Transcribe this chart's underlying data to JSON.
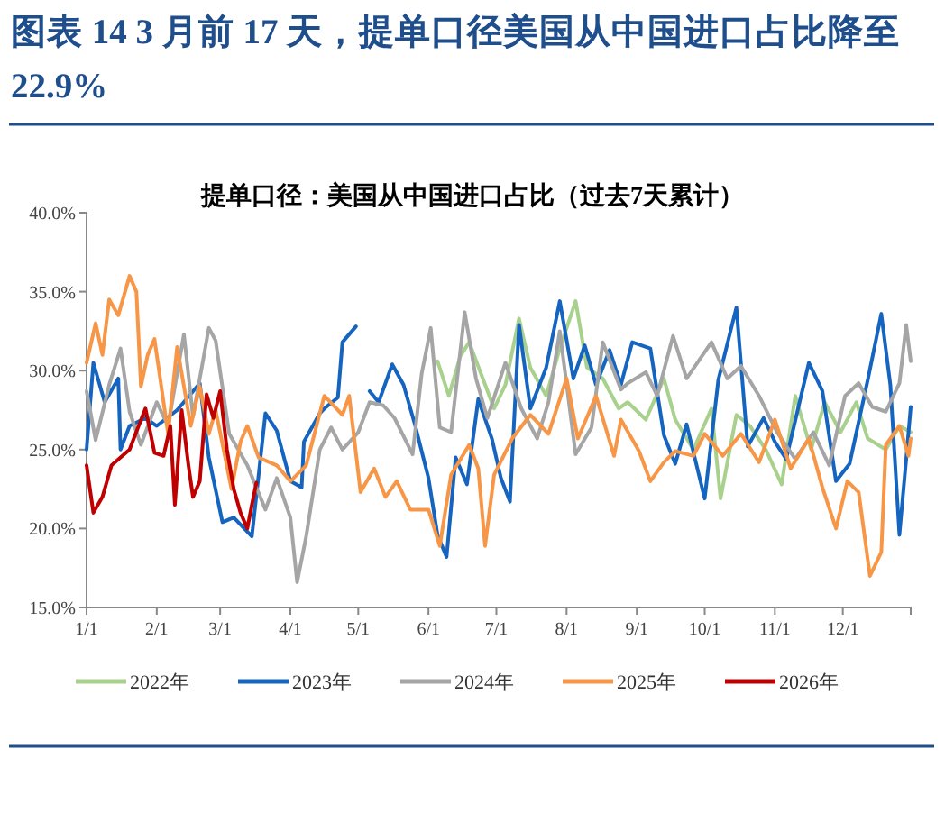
{
  "chart_data": {
    "type": "line",
    "title": "图表 14   3 月前 17 天，提单口径美国从中国进口占比降至 22.9%",
    "subtitle": "提单口径：美国从中国进口占比（过去7天累计）",
    "xlim": [
      "--01-01",
      "--12-31"
    ],
    "xticks": [
      {
        "value": "--01-01",
        "label": "1/1"
      },
      {
        "value": "--02-01",
        "label": "2/1"
      },
      {
        "value": "--03-01",
        "label": "3/1"
      },
      {
        "value": "--04-01",
        "label": "4/1"
      },
      {
        "value": "--05-01",
        "label": "5/1"
      },
      {
        "value": "--06-01",
        "label": "6/1"
      },
      {
        "value": "--07-01",
        "label": "7/1"
      },
      {
        "value": "--08-01",
        "label": "8/1"
      },
      {
        "value": "--09-01",
        "label": "9/1"
      },
      {
        "value": "--10-01",
        "label": "10/1"
      },
      {
        "value": "--11-01",
        "label": "11/1"
      },
      {
        "value": "--12-01",
        "label": "12/1"
      }
    ],
    "ylim": [
      15,
      40
    ],
    "yticks": [
      {
        "value": 15,
        "label": "15.0%"
      },
      {
        "value": 20,
        "label": "20.0%"
      },
      {
        "value": 25,
        "label": "25.0%"
      },
      {
        "value": 30,
        "label": "30.0%"
      },
      {
        "value": 35,
        "label": "35.0%"
      },
      {
        "value": 40,
        "label": "40.0%"
      }
    ],
    "grid": false,
    "legend": "bottom",
    "marker": "none",
    "line_style": "solid",
    "series": [
      {
        "name": "2022年",
        "color": "#a9d18e",
        "x": [
          "--06-05",
          "--06-10",
          "--06-15",
          "--06-19",
          "--06-25",
          "--06-30",
          "--07-05",
          "--07-11",
          "--07-16",
          "--07-23",
          "--07-29",
          "--08-05",
          "--08-10",
          "--08-17",
          "--08-24",
          "--08-28",
          "--09-05",
          "--09-13",
          "--09-18",
          "--09-26",
          "--10-04",
          "--10-08",
          "--10-15",
          "--10-21",
          "--10-28",
          "--11-04",
          "--11-10",
          "--11-17",
          "--11-23",
          "--11-30",
          "--12-07",
          "--12-12",
          "--12-20",
          "--12-26",
          "--12-31"
        ],
        "values": [
          30.6,
          28.4,
          30.9,
          31.8,
          29.5,
          27.6,
          29.1,
          33.3,
          30.2,
          28.4,
          31.4,
          34.4,
          30.2,
          29.5,
          27.6,
          28.0,
          26.9,
          29.5,
          26.9,
          25.0,
          27.6,
          21.9,
          27.2,
          26.5,
          25.0,
          22.8,
          28.4,
          25.0,
          28.0,
          26.1,
          28.0,
          25.7,
          25.0,
          26.5,
          26.1
        ]
      },
      {
        "name": "2023年",
        "color": "#1565c0",
        "x": [
          "--01-01",
          "--01-04",
          "--01-09",
          "--01-15",
          "--01-16",
          "--01-20",
          "--01-27",
          "--02-01",
          "--02-10",
          "--02-20",
          "--02-24",
          "--03-02",
          "--03-07",
          "--03-15",
          "--03-21",
          "--03-26",
          "--04-01",
          "--04-06",
          "--04-07",
          "--04-14",
          "--04-16",
          "--04-22",
          "--04-24",
          "--04-30",
          "--05-02",
          "--05-06",
          "--05-10",
          "--05-16",
          "--05-21",
          "--05-26",
          "--06-01",
          "--06-05",
          "--06-09",
          "--06-13",
          "--06-18",
          "--06-23",
          "--06-29",
          "--07-03",
          "--07-07",
          "--07-11",
          "--07-16",
          "--07-23",
          "--07-29",
          "--08-04",
          "--08-09",
          "--08-14",
          "--08-20",
          "--08-25",
          "--08-30",
          "--09-07",
          "--09-13",
          "--09-18",
          "--09-23",
          "--10-01",
          "--10-07",
          "--10-15",
          "--10-20",
          "--10-27",
          "--11-01",
          "--11-06",
          "--11-16",
          "--11-22",
          "--11-28",
          "--12-04",
          "--12-12",
          "--12-18",
          "--12-22",
          "--12-26",
          "--12-29",
          "--12-31"
        ],
        "values": [
          25.0,
          30.5,
          28.0,
          29.5,
          25.0,
          26.5,
          27.0,
          26.5,
          27.5,
          29.2,
          24.5,
          20.4,
          20.7,
          19.5,
          27.3,
          26.2,
          23.0,
          22.6,
          25.5,
          27.3,
          27.6,
          28.3,
          31.8,
          32.8,
          null,
          28.7,
          28.0,
          30.4,
          29.1,
          26.6,
          23.2,
          19.6,
          18.2,
          24.5,
          22.8,
          28.2,
          25.7,
          23.2,
          21.7,
          32.9,
          27.6,
          30.2,
          34.4,
          29.5,
          31.6,
          29.1,
          31.3,
          29.1,
          31.8,
          31.4,
          25.9,
          24.1,
          26.6,
          21.9,
          29.4,
          34.0,
          25.2,
          27.0,
          25.5,
          24.4,
          30.5,
          28.7,
          23.0,
          24.1,
          29.4,
          33.6,
          29.1,
          19.6,
          24.4,
          27.7
        ]
      },
      {
        "name": "2024年",
        "color": "#a5a5a5",
        "x": [
          "--01-01",
          "--01-05",
          "--01-11",
          "--01-16",
          "--01-20",
          "--01-25",
          "--02-01",
          "--02-06",
          "--02-13",
          "--02-17",
          "--02-24",
          "--02-27",
          "--03-05",
          "--03-13",
          "--03-21",
          "--03-26",
          "--04-01",
          "--04-04",
          "--04-08",
          "--04-14",
          "--04-19",
          "--04-24",
          "--05-01",
          "--05-06",
          "--05-12",
          "--05-17",
          "--05-25",
          "--05-29",
          "--06-02",
          "--06-06",
          "--06-11",
          "--06-17",
          "--06-22",
          "--06-27",
          "--07-05",
          "--07-12",
          "--07-19",
          "--07-24",
          "--07-29",
          "--08-05",
          "--08-12",
          "--08-17",
          "--08-25",
          "--08-28",
          "--09-05",
          "--09-10",
          "--09-17",
          "--09-23",
          "--10-04",
          "--10-11",
          "--10-17",
          "--10-25",
          "--11-02",
          "--11-10",
          "--11-18",
          "--11-25",
          "--12-02",
          "--12-08",
          "--12-14",
          "--12-20",
          "--12-26",
          "--12-29",
          "--12-31"
        ],
        "values": [
          28.7,
          25.6,
          29.1,
          31.4,
          27.4,
          25.3,
          28.0,
          26.5,
          32.3,
          27.1,
          32.7,
          31.9,
          26.0,
          24.0,
          21.2,
          23.2,
          20.7,
          16.6,
          19.5,
          25.0,
          26.4,
          25.0,
          26.1,
          28.0,
          27.8,
          27.0,
          24.7,
          29.8,
          32.7,
          26.4,
          26.1,
          33.7,
          29.5,
          27.0,
          30.5,
          27.6,
          25.7,
          28.0,
          32.5,
          24.7,
          26.4,
          31.8,
          28.8,
          29.2,
          29.9,
          28.4,
          32.2,
          29.5,
          31.8,
          29.5,
          30.3,
          28.4,
          26.1,
          24.4,
          26.1,
          24.0,
          28.4,
          29.2,
          27.7,
          27.4,
          29.2,
          32.9,
          30.6
        ]
      },
      {
        "name": "2025年",
        "color": "#f79646",
        "x": [
          "--01-01",
          "--01-05",
          "--01-08",
          "--01-11",
          "--01-15",
          "--01-20",
          "--01-23",
          "--01-25",
          "--01-28",
          "--01-31",
          "--02-06",
          "--02-10",
          "--02-16",
          "--02-20",
          "--02-24",
          "--02-27",
          "--03-06",
          "--03-10",
          "--03-13",
          "--03-18",
          "--03-26",
          "--04-01",
          "--04-08",
          "--04-16",
          "--04-24",
          "--04-27",
          "--05-02",
          "--05-08",
          "--05-13",
          "--05-18",
          "--05-24",
          "--06-01",
          "--06-06",
          "--06-11",
          "--06-19",
          "--06-23",
          "--06-26",
          "--06-30",
          "--07-08",
          "--07-16",
          "--07-24",
          "--08-01",
          "--08-06",
          "--08-14",
          "--08-22",
          "--08-25",
          "--09-02",
          "--09-07",
          "--09-13",
          "--09-18",
          "--09-26",
          "--10-01",
          "--10-09",
          "--10-17",
          "--10-25",
          "--11-01",
          "--11-08",
          "--11-16",
          "--11-22",
          "--11-28",
          "--12-03",
          "--12-08",
          "--12-13",
          "--12-18",
          "--12-20",
          "--12-26",
          "--12-30",
          "--12-31"
        ],
        "values": [
          30.5,
          33.0,
          31.0,
          34.5,
          33.5,
          36.0,
          35.0,
          29.0,
          31.0,
          32.0,
          26.0,
          31.5,
          26.5,
          29.0,
          26.0,
          27.5,
          22.5,
          25.5,
          26.5,
          24.5,
          24.0,
          23.0,
          24.0,
          28.4,
          27.2,
          28.4,
          22.3,
          23.8,
          22.0,
          23.0,
          21.2,
          21.2,
          18.9,
          23.4,
          25.3,
          23.8,
          18.9,
          23.4,
          25.7,
          27.2,
          26.0,
          29.5,
          25.7,
          28.4,
          24.6,
          26.9,
          24.9,
          23.0,
          24.2,
          24.9,
          24.6,
          26.0,
          24.6,
          26.0,
          24.2,
          26.9,
          23.8,
          25.7,
          22.6,
          20.0,
          23.0,
          22.3,
          17.0,
          18.5,
          25.3,
          26.5,
          24.6,
          25.7
        ]
      },
      {
        "name": "2026年",
        "color": "#c00000",
        "x": [
          "--01-01",
          "--01-04",
          "--01-08",
          "--01-12",
          "--01-16",
          "--01-20",
          "--01-24",
          "--01-27",
          "--01-31",
          "--02-04",
          "--02-07",
          "--02-09",
          "--02-12",
          "--02-15",
          "--02-17",
          "--02-20",
          "--02-23",
          "--02-26",
          "--03-01",
          "--03-04",
          "--03-07",
          "--03-10",
          "--03-13",
          "--03-15",
          "--03-17"
        ],
        "values": [
          24.0,
          21.0,
          22.0,
          24.0,
          24.5,
          25.0,
          26.5,
          27.6,
          24.8,
          24.6,
          26.5,
          21.5,
          27.5,
          24.0,
          22.0,
          23.0,
          28.5,
          27.0,
          28.7,
          25.0,
          22.5,
          21.0,
          20.0,
          21.5,
          22.9
        ]
      }
    ]
  }
}
